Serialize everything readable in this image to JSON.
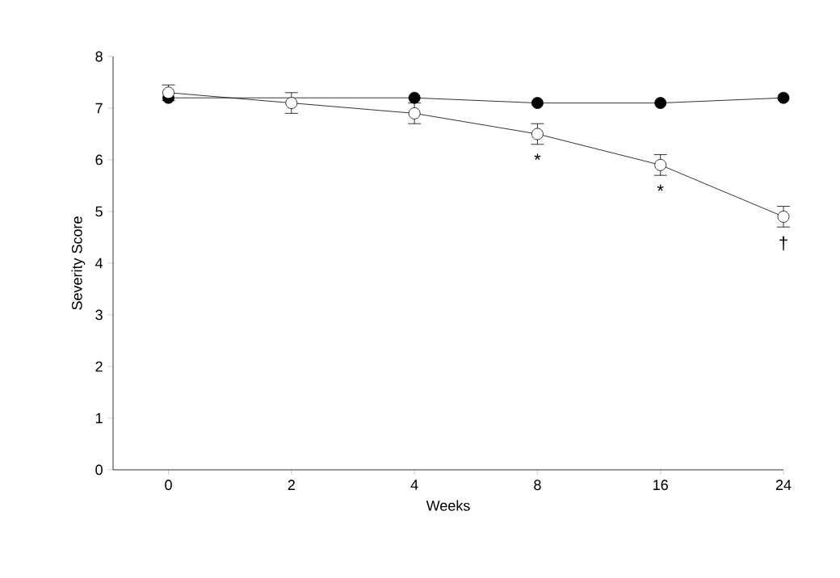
{
  "chart_data": {
    "type": "line",
    "xlabel": "Weeks",
    "ylabel": "Severity Score",
    "categories": [
      "0",
      "2",
      "4",
      "8",
      "16",
      "24"
    ],
    "series": [
      {
        "color": "#000000",
        "values": [
          7.2,
          null,
          7.2,
          7.1,
          7.1,
          7.2
        ]
      },
      {
        "color": "#ffffff",
        "values": [
          7.3,
          7.1,
          6.9,
          6.5,
          5.9,
          4.9
        ],
        "errors": [
          0.15,
          0.2,
          0.2,
          0.2,
          0.2,
          0.2
        ]
      }
    ],
    "marker": "circle",
    "ylim": [
      0,
      8
    ],
    "yticks": [
      0,
      1,
      2,
      3,
      4,
      5,
      6,
      7,
      8
    ],
    "annotations": [
      {
        "text": "*",
        "x": "8",
        "y": 6.5
      },
      {
        "text": "*",
        "x": "16",
        "y": 5.9
      },
      {
        "text": "†",
        "x": "24",
        "y": 4.9
      }
    ]
  }
}
